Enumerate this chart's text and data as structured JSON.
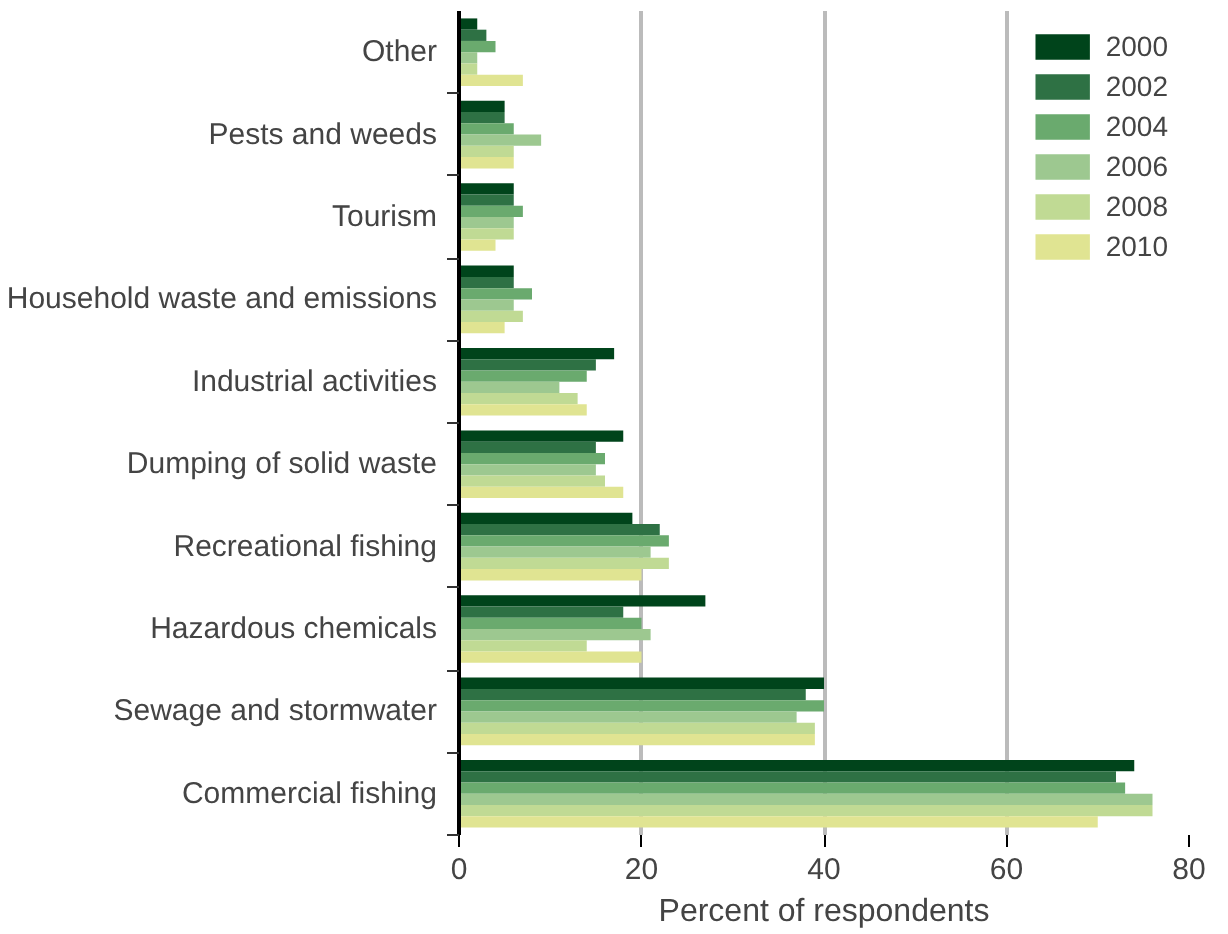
{
  "chart_data": {
    "type": "bar",
    "orientation": "horizontal",
    "xlabel": "Percent of respondents",
    "categories": [
      "Other",
      "Pests and weeds",
      "Tourism",
      "Household waste and emissions",
      "Industrial activities",
      "Dumping of solid waste",
      "Recreational fishing",
      "Hazardous chemicals",
      "Sewage and stormwater",
      "Commercial fishing"
    ],
    "series": [
      {
        "name": "2000",
        "color": "#00441b",
        "values": [
          2,
          5,
          6,
          6,
          17,
          18,
          19,
          27,
          40,
          74
        ]
      },
      {
        "name": "2002",
        "color": "#2e7144",
        "values": [
          3,
          5,
          6,
          6,
          15,
          15,
          22,
          18,
          38,
          72
        ]
      },
      {
        "name": "2004",
        "color": "#6aaa6e",
        "values": [
          4,
          6,
          7,
          8,
          14,
          16,
          23,
          20,
          40,
          73
        ]
      },
      {
        "name": "2006",
        "color": "#9dc890",
        "values": [
          2,
          9,
          6,
          6,
          11,
          15,
          21,
          21,
          37,
          76
        ]
      },
      {
        "name": "2008",
        "color": "#c0da94",
        "values": [
          2,
          6,
          6,
          7,
          13,
          16,
          23,
          14,
          39,
          76
        ]
      },
      {
        "name": "2010",
        "color": "#e0e492",
        "values": [
          7,
          6,
          4,
          5,
          14,
          18,
          20,
          20,
          39,
          70
        ]
      }
    ],
    "xlim": [
      0,
      80
    ],
    "xticks": [
      0,
      20,
      40,
      60,
      80
    ],
    "grid": "x",
    "legend": "top right"
  }
}
